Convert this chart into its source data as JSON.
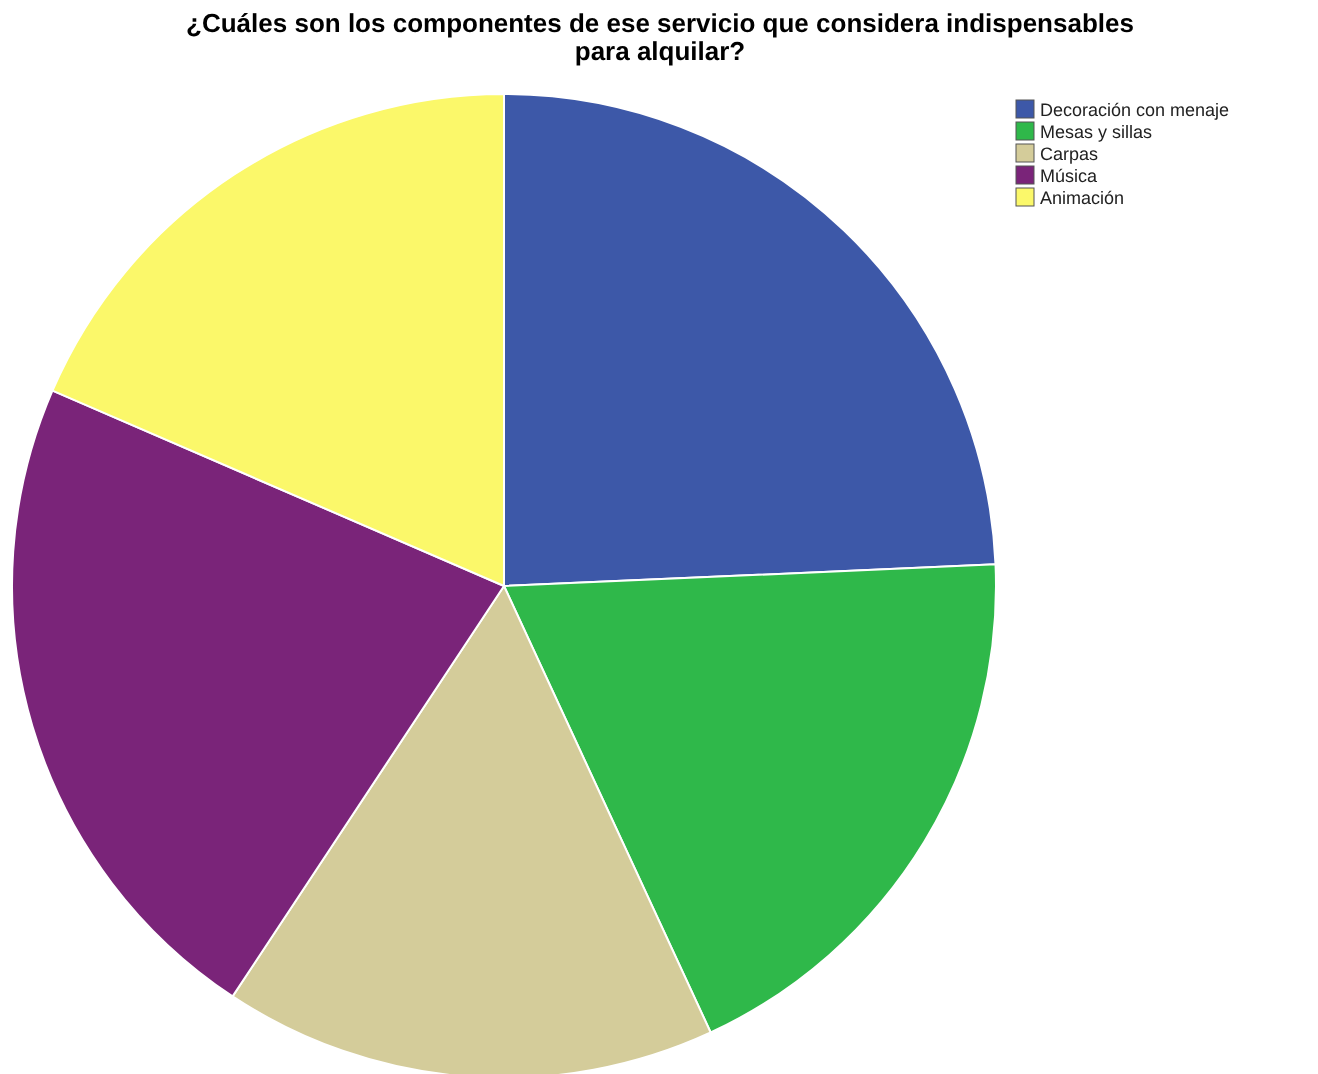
{
  "chart_data": {
    "type": "pie",
    "title": "¿Cuáles son los componentes de ese servicio que considera indispensables para alquilar?",
    "categories": [
      "Decoración con menaje",
      "Mesas y sillas",
      "Carpas",
      "Música",
      "Animación"
    ],
    "values": [
      24.3,
      18.8,
      16.2,
      22.2,
      18.5
    ],
    "colors": [
      "#3d58a8",
      "#2fb84a",
      "#d4cc9a",
      "#7a2479",
      "#fbf86a"
    ],
    "legend": "top right"
  }
}
